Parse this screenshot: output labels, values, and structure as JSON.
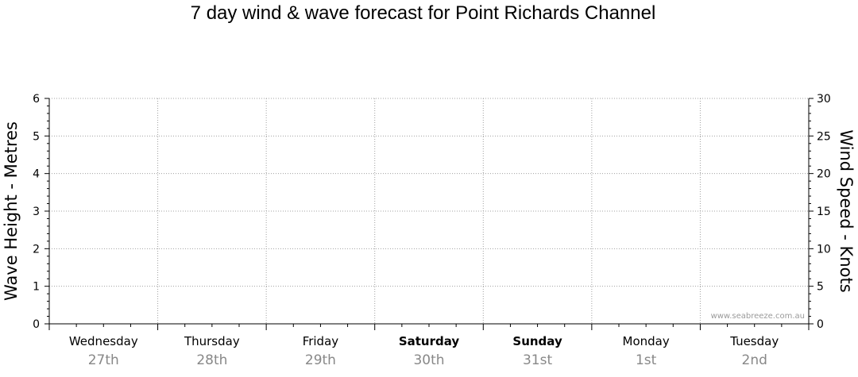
{
  "title": "7 day wind & wave forecast for Point Richards Channel",
  "credit": "www.seabreeze.com.au",
  "chart_data": {
    "type": "line",
    "title": "7 day wind & wave forecast for Point Richards Channel",
    "left_axis": {
      "label": "Wave Height - Metres",
      "range": [
        0,
        6
      ],
      "ticks": [
        0,
        1,
        2,
        3,
        4,
        5,
        6
      ]
    },
    "right_axis": {
      "label": "Wind Speed - Knots",
      "range": [
        0,
        30
      ],
      "ticks": [
        0,
        5,
        10,
        15,
        20,
        25,
        30
      ]
    },
    "days": [
      {
        "name": "Wednesday",
        "date": "27th",
        "weekend": false
      },
      {
        "name": "Thursday",
        "date": "28th",
        "weekend": false
      },
      {
        "name": "Friday",
        "date": "29th",
        "weekend": false
      },
      {
        "name": "Saturday",
        "date": "30th",
        "weekend": true
      },
      {
        "name": "Sunday",
        "date": "31st",
        "weekend": true
      },
      {
        "name": "Monday",
        "date": "1st",
        "weekend": false
      },
      {
        "name": "Tuesday",
        "date": "2nd",
        "weekend": false
      }
    ],
    "series": [],
    "grid": true
  },
  "colors": {
    "grid": "#a0a0a0",
    "axis": "#000000",
    "date": "#888888",
    "credit": "#9a9a9a"
  }
}
